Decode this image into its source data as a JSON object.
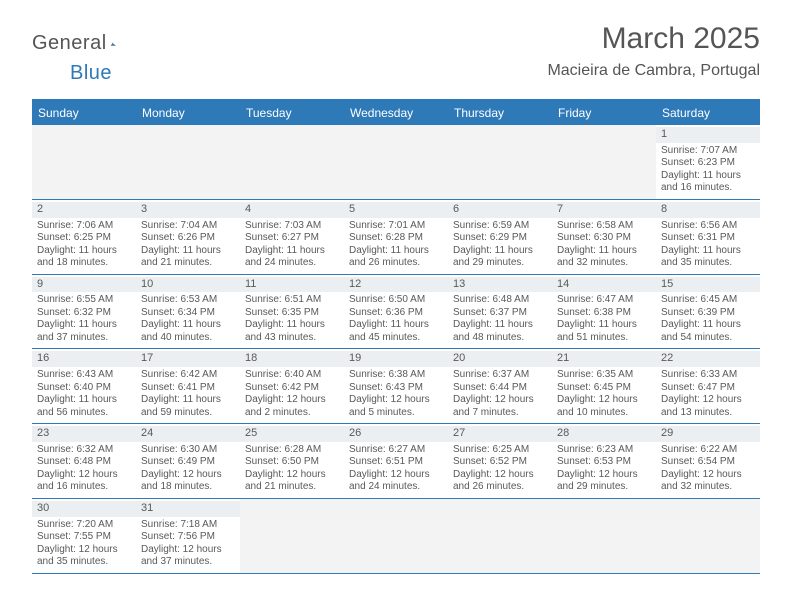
{
  "logo": {
    "text_general": "General",
    "text_blue": "Blue"
  },
  "title": "March 2025",
  "location": "Macieira de Cambra, Portugal",
  "colors": {
    "header_bg": "#2e79b8",
    "header_text": "#ffffff",
    "row_divider": "#2e79b8",
    "daynum_bg": "#eceff1",
    "blank_bg": "#f3f3f3",
    "body_text": "#595959",
    "title_text": "#555555"
  },
  "day_headers": [
    "Sunday",
    "Monday",
    "Tuesday",
    "Wednesday",
    "Thursday",
    "Friday",
    "Saturday"
  ],
  "weeks": [
    [
      null,
      null,
      null,
      null,
      null,
      null,
      {
        "n": "1",
        "sr": "Sunrise: 7:07 AM",
        "ss": "Sunset: 6:23 PM",
        "dl": "Daylight: 11 hours and 16 minutes."
      }
    ],
    [
      {
        "n": "2",
        "sr": "Sunrise: 7:06 AM",
        "ss": "Sunset: 6:25 PM",
        "dl": "Daylight: 11 hours and 18 minutes."
      },
      {
        "n": "3",
        "sr": "Sunrise: 7:04 AM",
        "ss": "Sunset: 6:26 PM",
        "dl": "Daylight: 11 hours and 21 minutes."
      },
      {
        "n": "4",
        "sr": "Sunrise: 7:03 AM",
        "ss": "Sunset: 6:27 PM",
        "dl": "Daylight: 11 hours and 24 minutes."
      },
      {
        "n": "5",
        "sr": "Sunrise: 7:01 AM",
        "ss": "Sunset: 6:28 PM",
        "dl": "Daylight: 11 hours and 26 minutes."
      },
      {
        "n": "6",
        "sr": "Sunrise: 6:59 AM",
        "ss": "Sunset: 6:29 PM",
        "dl": "Daylight: 11 hours and 29 minutes."
      },
      {
        "n": "7",
        "sr": "Sunrise: 6:58 AM",
        "ss": "Sunset: 6:30 PM",
        "dl": "Daylight: 11 hours and 32 minutes."
      },
      {
        "n": "8",
        "sr": "Sunrise: 6:56 AM",
        "ss": "Sunset: 6:31 PM",
        "dl": "Daylight: 11 hours and 35 minutes."
      }
    ],
    [
      {
        "n": "9",
        "sr": "Sunrise: 6:55 AM",
        "ss": "Sunset: 6:32 PM",
        "dl": "Daylight: 11 hours and 37 minutes."
      },
      {
        "n": "10",
        "sr": "Sunrise: 6:53 AM",
        "ss": "Sunset: 6:34 PM",
        "dl": "Daylight: 11 hours and 40 minutes."
      },
      {
        "n": "11",
        "sr": "Sunrise: 6:51 AM",
        "ss": "Sunset: 6:35 PM",
        "dl": "Daylight: 11 hours and 43 minutes."
      },
      {
        "n": "12",
        "sr": "Sunrise: 6:50 AM",
        "ss": "Sunset: 6:36 PM",
        "dl": "Daylight: 11 hours and 45 minutes."
      },
      {
        "n": "13",
        "sr": "Sunrise: 6:48 AM",
        "ss": "Sunset: 6:37 PM",
        "dl": "Daylight: 11 hours and 48 minutes."
      },
      {
        "n": "14",
        "sr": "Sunrise: 6:47 AM",
        "ss": "Sunset: 6:38 PM",
        "dl": "Daylight: 11 hours and 51 minutes."
      },
      {
        "n": "15",
        "sr": "Sunrise: 6:45 AM",
        "ss": "Sunset: 6:39 PM",
        "dl": "Daylight: 11 hours and 54 minutes."
      }
    ],
    [
      {
        "n": "16",
        "sr": "Sunrise: 6:43 AM",
        "ss": "Sunset: 6:40 PM",
        "dl": "Daylight: 11 hours and 56 minutes."
      },
      {
        "n": "17",
        "sr": "Sunrise: 6:42 AM",
        "ss": "Sunset: 6:41 PM",
        "dl": "Daylight: 11 hours and 59 minutes."
      },
      {
        "n": "18",
        "sr": "Sunrise: 6:40 AM",
        "ss": "Sunset: 6:42 PM",
        "dl": "Daylight: 12 hours and 2 minutes."
      },
      {
        "n": "19",
        "sr": "Sunrise: 6:38 AM",
        "ss": "Sunset: 6:43 PM",
        "dl": "Daylight: 12 hours and 5 minutes."
      },
      {
        "n": "20",
        "sr": "Sunrise: 6:37 AM",
        "ss": "Sunset: 6:44 PM",
        "dl": "Daylight: 12 hours and 7 minutes."
      },
      {
        "n": "21",
        "sr": "Sunrise: 6:35 AM",
        "ss": "Sunset: 6:45 PM",
        "dl": "Daylight: 12 hours and 10 minutes."
      },
      {
        "n": "22",
        "sr": "Sunrise: 6:33 AM",
        "ss": "Sunset: 6:47 PM",
        "dl": "Daylight: 12 hours and 13 minutes."
      }
    ],
    [
      {
        "n": "23",
        "sr": "Sunrise: 6:32 AM",
        "ss": "Sunset: 6:48 PM",
        "dl": "Daylight: 12 hours and 16 minutes."
      },
      {
        "n": "24",
        "sr": "Sunrise: 6:30 AM",
        "ss": "Sunset: 6:49 PM",
        "dl": "Daylight: 12 hours and 18 minutes."
      },
      {
        "n": "25",
        "sr": "Sunrise: 6:28 AM",
        "ss": "Sunset: 6:50 PM",
        "dl": "Daylight: 12 hours and 21 minutes."
      },
      {
        "n": "26",
        "sr": "Sunrise: 6:27 AM",
        "ss": "Sunset: 6:51 PM",
        "dl": "Daylight: 12 hours and 24 minutes."
      },
      {
        "n": "27",
        "sr": "Sunrise: 6:25 AM",
        "ss": "Sunset: 6:52 PM",
        "dl": "Daylight: 12 hours and 26 minutes."
      },
      {
        "n": "28",
        "sr": "Sunrise: 6:23 AM",
        "ss": "Sunset: 6:53 PM",
        "dl": "Daylight: 12 hours and 29 minutes."
      },
      {
        "n": "29",
        "sr": "Sunrise: 6:22 AM",
        "ss": "Sunset: 6:54 PM",
        "dl": "Daylight: 12 hours and 32 minutes."
      }
    ],
    [
      {
        "n": "30",
        "sr": "Sunrise: 7:20 AM",
        "ss": "Sunset: 7:55 PM",
        "dl": "Daylight: 12 hours and 35 minutes."
      },
      {
        "n": "31",
        "sr": "Sunrise: 7:18 AM",
        "ss": "Sunset: 7:56 PM",
        "dl": "Daylight: 12 hours and 37 minutes."
      },
      null,
      null,
      null,
      null,
      null
    ]
  ]
}
